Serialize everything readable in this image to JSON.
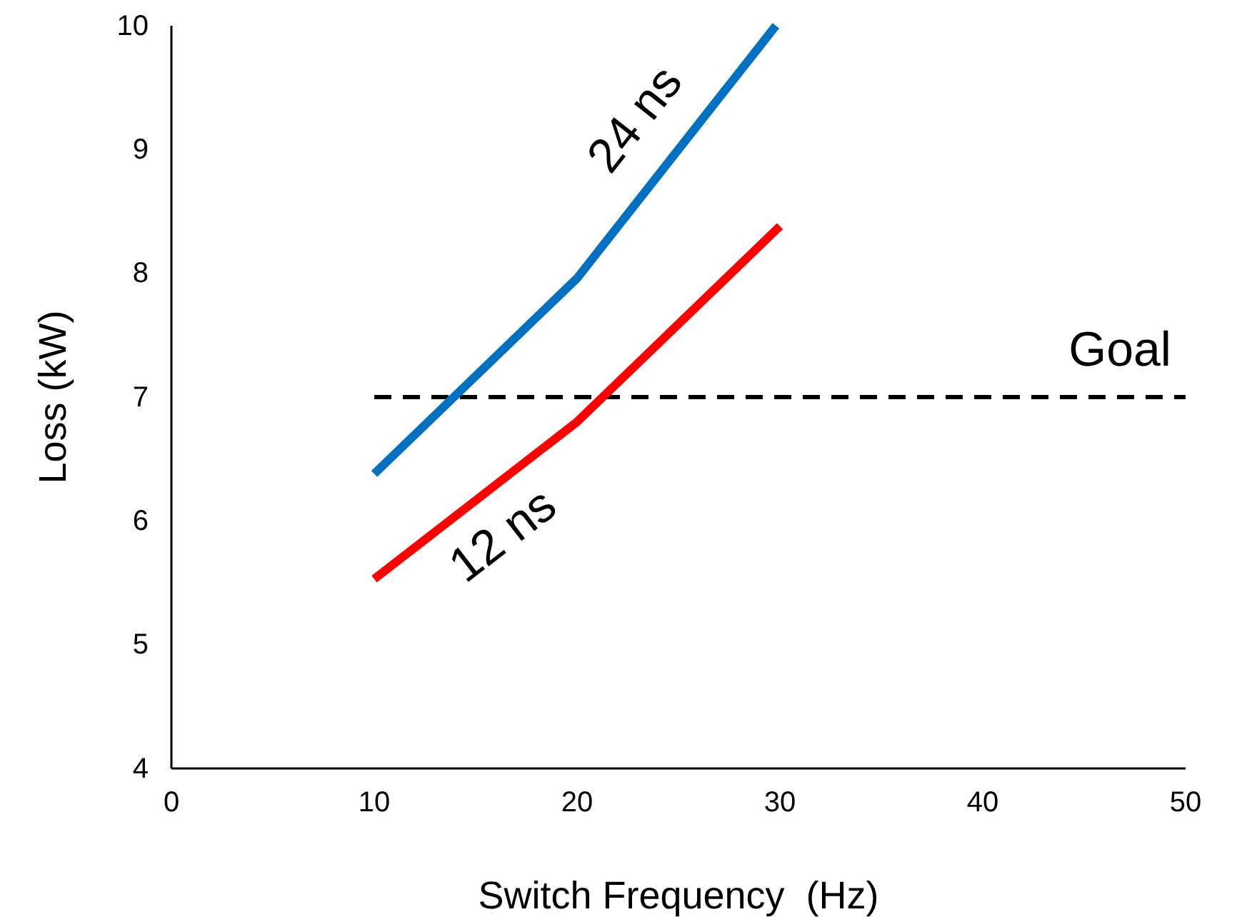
{
  "chart_data": {
    "type": "line",
    "xlabel": "Switch Frequency  (Hz)",
    "ylabel": "Loss (kW)",
    "xlim": [
      0,
      50
    ],
    "xticks": [
      0,
      10,
      20,
      30,
      40,
      50
    ],
    "ylim": [
      4,
      10
    ],
    "yticks": [
      4,
      5,
      6,
      7,
      8,
      9,
      10
    ],
    "grid": false,
    "marker": "none",
    "line_style": "solid",
    "series": [
      {
        "name": "24 ns",
        "color": "#0070c0",
        "x": [
          10,
          20,
          29.8
        ],
        "values": [
          6.38,
          7.96,
          10
        ]
      },
      {
        "name": "12 ns",
        "color": "#ff0000",
        "x": [
          10,
          20,
          30
        ],
        "values": [
          5.53,
          6.8,
          8.38
        ]
      }
    ],
    "ref_lines": [
      {
        "axis": "y",
        "value": 7,
        "label": "Goal",
        "color": "#000000",
        "line_style": "dashed"
      }
    ]
  }
}
